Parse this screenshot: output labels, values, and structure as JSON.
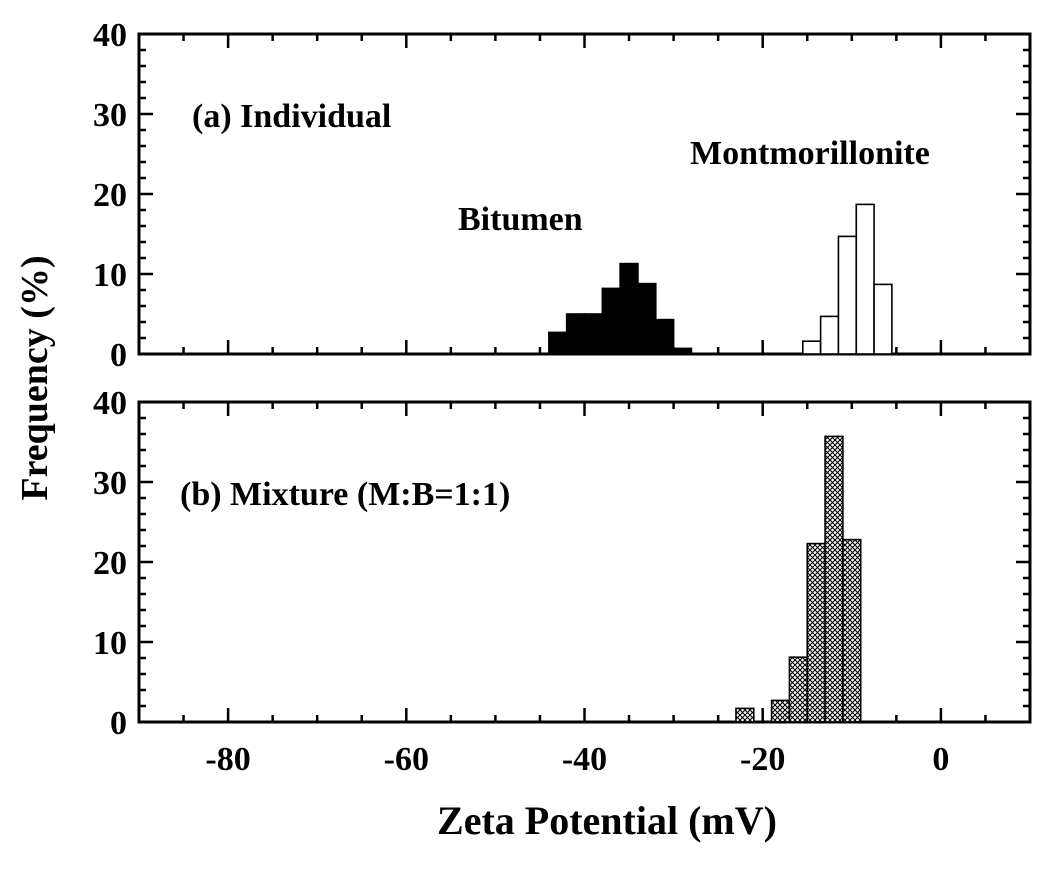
{
  "colors": {
    "ink": "#000000",
    "background": "#ffffff",
    "bitumen": "#000000",
    "montmorillonite": "#ffffff"
  },
  "chart_data": [
    {
      "type": "bar",
      "panel": "a",
      "title": "(a) Individual",
      "xlabel": "Zeta Potential (mV)",
      "ylabel": "Frequency (%)",
      "xlim": [
        -90,
        10
      ],
      "ylim": [
        0,
        40
      ],
      "yticks": [
        0,
        10,
        20,
        30,
        40
      ],
      "bin_width": 2,
      "series": [
        {
          "name": "Bitumen",
          "fill": "solid-black",
          "x": [
            -43,
            -41,
            -39,
            -37,
            -35,
            -33,
            -31,
            -29
          ],
          "values": [
            2.7,
            5,
            5,
            8.2,
            11.3,
            8.8,
            4.3,
            0.7
          ]
        },
        {
          "name": "Montmorillonite",
          "fill": "white",
          "x": [
            -14.5,
            -12.5,
            -10.5,
            -8.5,
            -6.5
          ],
          "values": [
            1.6,
            4.7,
            14.7,
            18.7,
            8.7
          ]
        }
      ]
    },
    {
      "type": "bar",
      "panel": "b",
      "title": "(b) Mixture (M:B=1:1)",
      "xlabel": "Zeta Potential (mV)",
      "ylabel": "Frequency (%)",
      "xlim": [
        -90,
        10
      ],
      "ylim": [
        0,
        40
      ],
      "yticks": [
        0,
        10,
        20,
        30,
        40
      ],
      "xticks": [
        -80,
        -60,
        -40,
        -20,
        0
      ],
      "bin_width": 2,
      "series": [
        {
          "name": "Mixture",
          "fill": "crosshatch",
          "x": [
            -22,
            -18,
            -16,
            -14,
            -12,
            -10
          ],
          "values": [
            1.7,
            2.7,
            8.1,
            22.3,
            35.7,
            22.8
          ]
        }
      ]
    }
  ],
  "shared": {
    "ylabel": "Frequency (%)",
    "xlabel": "Zeta Potential (mV)",
    "xtick_labels": [
      "-80",
      "-60",
      "-40",
      "-20",
      "0"
    ],
    "ytick_labels_a": [
      "0",
      "10",
      "20",
      "30",
      "40"
    ],
    "ytick_labels_b": [
      "0",
      "10",
      "20",
      "30",
      "40"
    ]
  },
  "annotations": {
    "bitumen_label": "Bitumen",
    "montmorillonite_label": "Montmorillonite"
  }
}
